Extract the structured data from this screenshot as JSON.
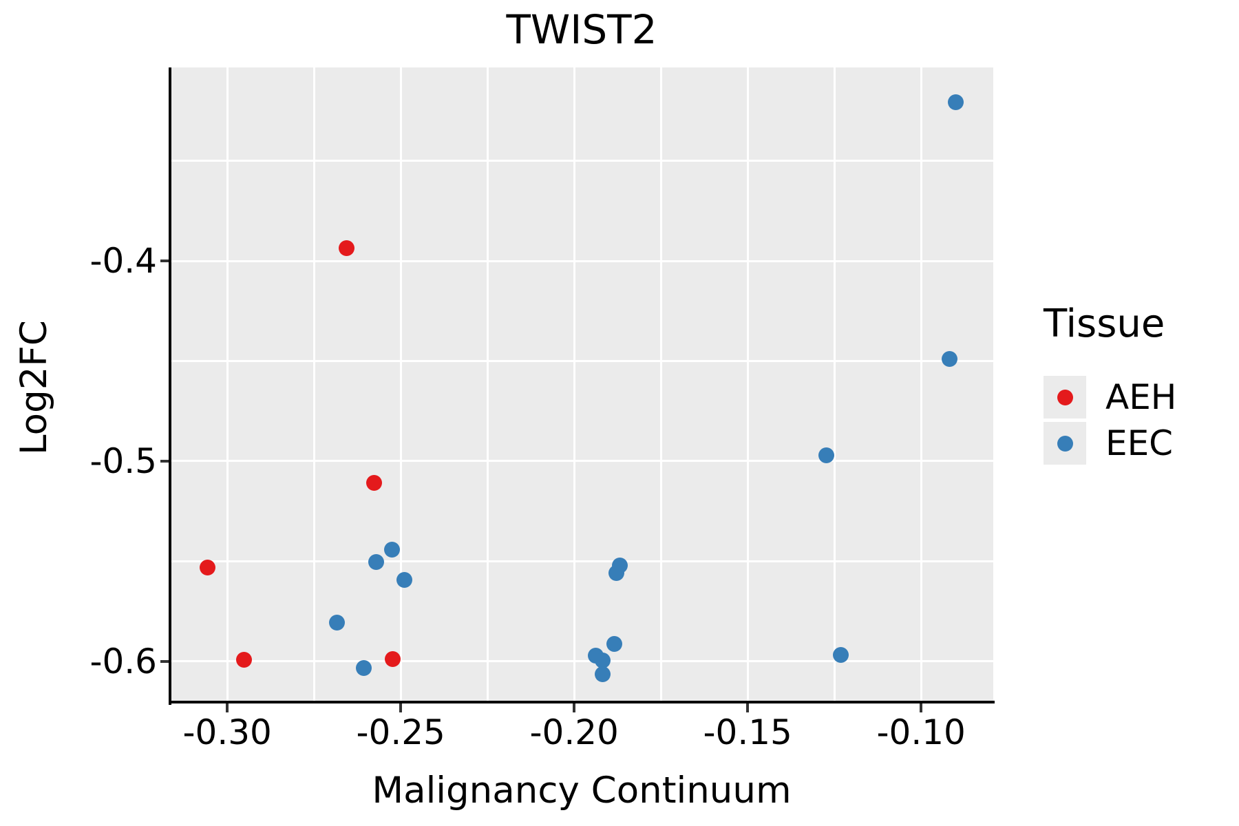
{
  "title": "TWIST2",
  "axes": {
    "x_label": "Malignancy Continuum",
    "y_label": "Log2FC"
  },
  "legend": {
    "title": "Tissue",
    "items": [
      {
        "label": "AEH",
        "color": "#E41A1C"
      },
      {
        "label": "EEC",
        "color": "#377EB8"
      }
    ]
  },
  "colors": {
    "panel_background": "#EBEBEB",
    "grid": "#FFFFFF",
    "axis": "#000000",
    "aeh": "#E41A1C",
    "eec": "#377EB8"
  },
  "chart_data": {
    "type": "scatter",
    "title": "TWIST2",
    "xlabel": "Malignancy Continuum",
    "ylabel": "Log2FC",
    "xlim": [
      -0.3165,
      -0.0792
    ],
    "ylim": [
      -0.6203,
      -0.3034
    ],
    "x_ticks": [
      -0.3,
      -0.25,
      -0.2,
      -0.15,
      -0.1
    ],
    "x_tick_labels": [
      "-0.30",
      "-0.25",
      "-0.20",
      "-0.15",
      "-0.10"
    ],
    "x_minor_breaks": [
      -0.275,
      -0.225,
      -0.175,
      -0.125
    ],
    "y_ticks": [
      -0.4,
      -0.5,
      -0.6
    ],
    "y_tick_labels": [
      "-0.4",
      "-0.5",
      "-0.6"
    ],
    "y_minor_breaks": [
      -0.35,
      -0.45,
      -0.55
    ],
    "grid": true,
    "legend_position": "right",
    "series": [
      {
        "name": "AEH",
        "color": "#E41A1C",
        "points": [
          [
            -0.2656,
            -0.3937
          ],
          [
            -0.2577,
            -0.511
          ],
          [
            -0.3057,
            -0.5531
          ],
          [
            -0.2952,
            -0.599
          ],
          [
            -0.2524,
            -0.5989
          ]
        ]
      },
      {
        "name": "EEC",
        "color": "#377EB8",
        "points": [
          [
            -0.2525,
            -0.5441
          ],
          [
            -0.2571,
            -0.5502
          ],
          [
            -0.249,
            -0.5593
          ],
          [
            -0.2683,
            -0.5806
          ],
          [
            -0.2607,
            -0.6034
          ],
          [
            -0.1869,
            -0.5521
          ],
          [
            -0.1879,
            -0.5559
          ],
          [
            -0.1884,
            -0.5911
          ],
          [
            -0.1937,
            -0.5971
          ],
          [
            -0.1917,
            -0.5994
          ],
          [
            -0.1917,
            -0.6063
          ],
          [
            -0.0901,
            -0.3209
          ],
          [
            -0.0917,
            -0.449
          ],
          [
            -0.1273,
            -0.4971
          ],
          [
            -0.1232,
            -0.5967
          ]
        ]
      }
    ]
  }
}
